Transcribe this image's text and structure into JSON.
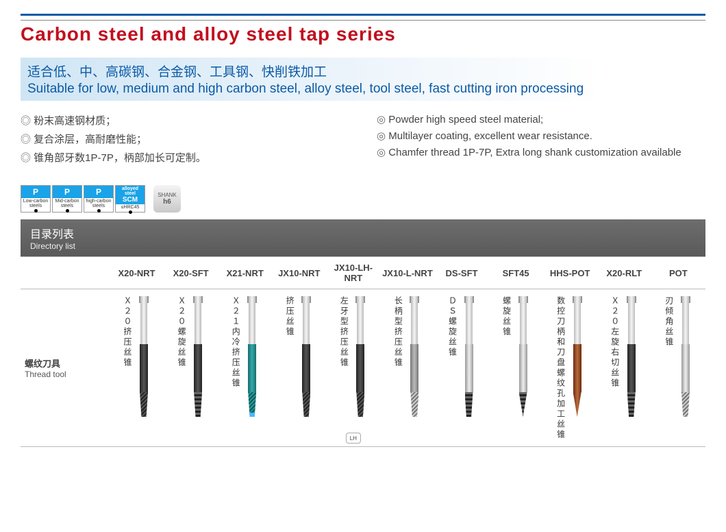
{
  "title": "Carbon steel and alloy steel tap series",
  "banner": {
    "cn": "适合低、中、高碳钢、合金钢、工具钢、快削铁加工",
    "en": "Suitable for low, medium and high carbon steel, alloy steel, tool steel, fast cutting iron processing"
  },
  "features_cn": [
    "粉末高速钢材质；",
    "复合涂层，高耐磨性能；",
    "锥角部牙数1P-7P，柄部加长可定制。"
  ],
  "features_en": [
    "Powder high speed steel material;",
    "Multilayer coating, excellent wear resistance.",
    "Chamfer thread 1P-7P, Extra long shank customization available"
  ],
  "badges": {
    "p": [
      "Low-carbon steels",
      "Mid-carbon steels",
      "high-carbon steels"
    ],
    "scm_top": "alloyed steel",
    "scm": "SCM",
    "scm_sub": "≤HRC45",
    "shank": "SHANK",
    "shank_sub": "h6"
  },
  "directory": {
    "cn": "目录列表",
    "en": "Directory list"
  },
  "row_label": {
    "cn": "螺纹刀具",
    "en": "Thread tool"
  },
  "products": [
    {
      "code": "X20-NRT",
      "label": "Ｘ２０挤压丝锥",
      "body": "c-dark",
      "tip": "thread tip-taper"
    },
    {
      "code": "X20-SFT",
      "label": "Ｘ２０螺旋丝锥",
      "body": "c-dark",
      "tip": "spiral tip-taper"
    },
    {
      "code": "X21-NRT",
      "label": "Ｘ２１内冷挤压丝锥",
      "body": "c-teal",
      "tip": "thread-teal tip-taper tip-blue"
    },
    {
      "code": "JX10-NRT",
      "label": "挤压丝锥",
      "body": "c-dark",
      "tip": "thread tip-taper"
    },
    {
      "code": "JX10-LH-NRT",
      "label": "左牙型挤压丝锥",
      "body": "c-dark",
      "tip": "thread tip-taper",
      "badge": "LH"
    },
    {
      "code": "JX10-L-NRT",
      "label": "长柄型挤压丝锥",
      "body": "c-gray",
      "tip": "thread-light tip-taper"
    },
    {
      "code": "DS-SFT",
      "label": "ＤＳ螺旋丝锥",
      "body": "c-silver",
      "tip": "spiral tip-taper"
    },
    {
      "code": "SFT45",
      "label": "螺旋丝锥",
      "body": "c-silver",
      "tip": "spiral tip-point"
    },
    {
      "code": "HHS-POT",
      "label": "数控刀柄和刀盘螺纹孔加工丝锥",
      "body": "c-copper",
      "tip": "c-copper tip-point"
    },
    {
      "code": "X20-RLT",
      "label": "Ｘ２０左旋右切丝锥",
      "body": "c-dark",
      "tip": "spiral tip-taper"
    },
    {
      "code": "POT",
      "label": "刃倾角丝锥",
      "body": "c-silver",
      "tip": "thread-light tip-taper"
    }
  ],
  "colors": {
    "brand_red": "#c10f1f",
    "brand_blue": "#0b5aa6"
  }
}
